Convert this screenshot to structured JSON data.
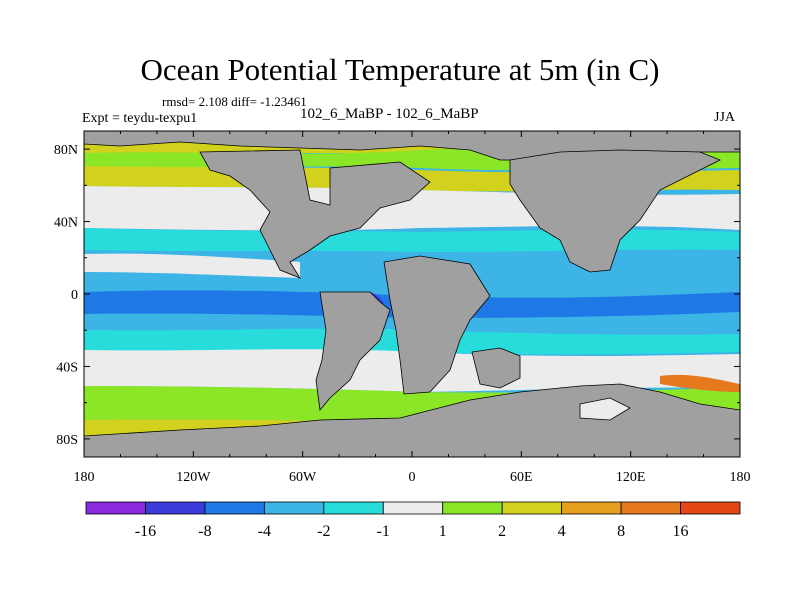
{
  "title": "Ocean Potential Temperature at 5m (in C)",
  "stats": "rmsd= 2.108 diff= -1.23461",
  "experiment": "Expt = teydu-texpu1",
  "difference_label": "102_6_MaBP - 102_6_MaBP",
  "season": "JJA",
  "x_ticks": [
    {
      "lon": -180,
      "label": "180"
    },
    {
      "lon": -120,
      "label": "120W"
    },
    {
      "lon": -60,
      "label": "60W"
    },
    {
      "lon": 0,
      "label": "0"
    },
    {
      "lon": 60,
      "label": "60E"
    },
    {
      "lon": 120,
      "label": "120E"
    },
    {
      "lon": 180,
      "label": "180"
    }
  ],
  "y_ticks": [
    {
      "lat": 80,
      "label": "80N"
    },
    {
      "lat": 40,
      "label": "40N"
    },
    {
      "lat": 0,
      "label": "0"
    },
    {
      "lat": -40,
      "label": "40S"
    },
    {
      "lat": -80,
      "label": "80S"
    }
  ],
  "colorbar": {
    "colors": [
      "#8a2be2",
      "#3a3ad8",
      "#1e78e6",
      "#3cb4e6",
      "#28dcdc",
      "#ececec",
      "#8ce628",
      "#d2d21e",
      "#e6a01e",
      "#e6781e",
      "#e64614"
    ],
    "labels": [
      "-16",
      "-8",
      "-4",
      "-2",
      "-1",
      "1",
      "2",
      "4",
      "8",
      "16"
    ]
  },
  "land_color": "#a0a0a0"
}
